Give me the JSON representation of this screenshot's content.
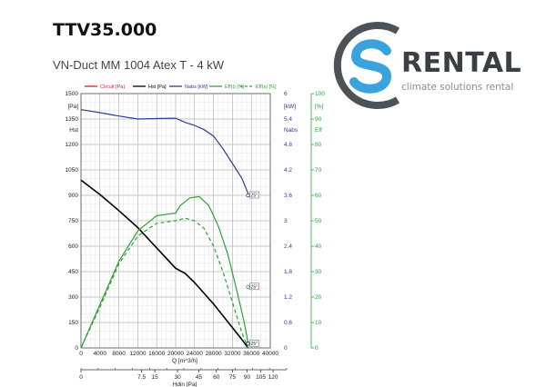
{
  "title": "TTV35.000",
  "subtitle": "VN-Duct MM 1004 Atex T - 4 kW",
  "logo": {
    "text": "RENTAL",
    "tagline": "climate solutions rental",
    "colors": {
      "blue": "#3aa3dd",
      "gray": "#4d5257"
    }
  },
  "chart_data": {
    "type": "line",
    "title": "",
    "x": {
      "label": "Q  [m^3/h]",
      "range": [
        0,
        40000
      ],
      "ticks": [
        0,
        4000,
        8000,
        12000,
        16000,
        20000,
        24000,
        28000,
        32000,
        36000,
        40000
      ]
    },
    "x2": {
      "label": "Hdin  [Pa]",
      "ticks": [
        {
          "label": "0",
          "q": 0
        },
        {
          "label": "7.5",
          "q": 12800
        },
        {
          "label": "15",
          "q": 15600
        },
        {
          "label": "30",
          "q": 20400
        },
        {
          "label": "45",
          "q": 24900
        },
        {
          "label": "60",
          "q": 28600
        },
        {
          "label": "75",
          "q": 32000
        },
        {
          "label": "90",
          "q": 35100
        },
        {
          "label": "105",
          "q": 38000
        },
        {
          "label": "120",
          "q": 40600
        }
      ]
    },
    "y_left": {
      "unit": "[Pa]",
      "label": "Hst",
      "range": [
        0,
        1500
      ],
      "ticks": [
        0,
        150,
        300,
        450,
        600,
        750,
        900,
        1050,
        1200,
        1350,
        1500
      ]
    },
    "y_mid": {
      "unit": "[kW]",
      "label": "Nabs",
      "range": [
        0,
        6
      ],
      "ticks": [
        "0",
        "0.6",
        "1.2",
        "1.8",
        "2.4",
        "3",
        "3.6",
        "4.2",
        "4.8",
        "5.4",
        "6"
      ]
    },
    "y_right": {
      "unit": "[%]",
      "label": "Eff",
      "range": [
        0,
        100
      ],
      "ticks": [
        0,
        10,
        20,
        30,
        40,
        50,
        60,
        70,
        80,
        90,
        100
      ]
    },
    "grid": true,
    "legend_position": "top",
    "series": [
      {
        "name": "Circuit [Pa]",
        "axis": "none",
        "color": "#cc2222",
        "style": "solid",
        "x": [],
        "y": []
      },
      {
        "name": "Hst [Pa]",
        "axis": "left",
        "color": "#000000",
        "style": "solid",
        "x": [
          0,
          4000,
          8000,
          12000,
          16000,
          20000,
          22000,
          24000,
          28000,
          32000,
          34000,
          35300
        ],
        "y": [
          990,
          905,
          810,
          710,
          590,
          470,
          440,
          385,
          260,
          120,
          50,
          0
        ]
      },
      {
        "name": "Nabs [kW]",
        "axis": "mid",
        "color": "#2b3c9a",
        "style": "solid",
        "x": [
          0,
          4000,
          8000,
          12000,
          16000,
          20000,
          22000,
          24000,
          26000,
          28000,
          30000,
          32000,
          34000,
          35300
        ],
        "y": [
          5.62,
          5.55,
          5.47,
          5.4,
          5.41,
          5.42,
          5.32,
          5.25,
          5.15,
          5.0,
          4.7,
          4.35,
          4.0,
          3.65
        ]
      },
      {
        "name": "Eff(t) [%]",
        "axis": "right",
        "color": "#2ea13a",
        "style": "solid",
        "x": [
          0,
          4000,
          8000,
          12000,
          16000,
          20000,
          21000,
          23000,
          25000,
          27000,
          29000,
          31000,
          33000,
          34500,
          35300
        ],
        "y": [
          0,
          17,
          34,
          46,
          52,
          53,
          56,
          59,
          59.5,
          56,
          48,
          37,
          22,
          10,
          2
        ]
      },
      {
        "name": "Eff(s) [%]",
        "axis": "right",
        "color": "#2ea13a",
        "style": "dashed",
        "x": [
          0,
          4000,
          8000,
          12000,
          16000,
          20000,
          22000,
          24000,
          26000,
          28000,
          30000,
          32000,
          34000,
          35300
        ],
        "y": [
          0,
          16,
          33,
          44,
          49,
          50,
          51,
          50,
          47,
          40,
          30,
          18,
          6,
          0
        ]
      }
    ],
    "annotations": [
      {
        "text": "25°",
        "series": "Nabs [kW]",
        "x": 35300,
        "y": 3.6
      },
      {
        "text": "25°",
        "series": "Eff(s) [%]",
        "x": 35300,
        "y": 24
      },
      {
        "text": "25°",
        "series": "Hst [Pa]",
        "x": 35300,
        "y": 25
      }
    ]
  }
}
